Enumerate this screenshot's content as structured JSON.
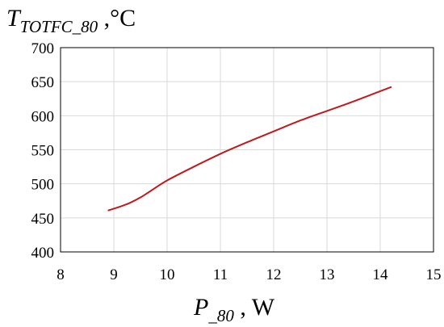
{
  "chart_data": {
    "type": "line",
    "ylabel": {
      "symbol": "T",
      "subscript": "TOTFC_80",
      "unit": " ,°C"
    },
    "xlabel": {
      "symbol": "P",
      "subscript": "_80",
      "unit": " , W"
    },
    "xlim": [
      8,
      15
    ],
    "ylim": [
      400,
      700
    ],
    "xticks": [
      8,
      9,
      10,
      11,
      12,
      13,
      14,
      15
    ],
    "yticks": [
      400,
      450,
      500,
      550,
      600,
      650,
      700
    ],
    "grid": true,
    "series": [
      {
        "color": "#c0191e",
        "x": [
          8.9,
          9.1,
          9.3,
          9.5,
          9.7,
          10.0,
          10.5,
          11.0,
          11.5,
          12.0,
          12.5,
          13.0,
          13.5,
          14.0,
          14.2
        ],
        "y": [
          461,
          466,
          472,
          480,
          490,
          505,
          525,
          544,
          561,
          577,
          593,
          607,
          621,
          636,
          642
        ]
      }
    ]
  }
}
